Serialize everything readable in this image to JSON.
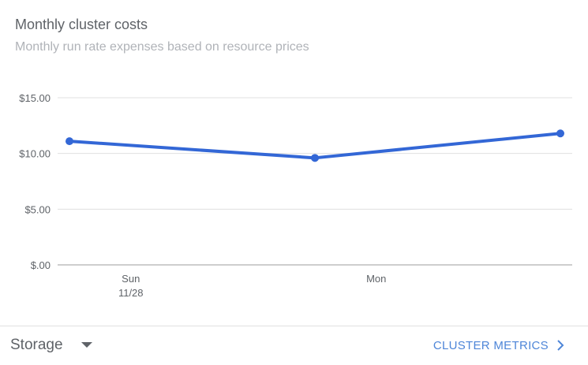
{
  "card": {
    "title": "Monthly cluster costs",
    "subtitle": "Monthly run rate expenses based on resource prices"
  },
  "footer": {
    "dropdown_value": "Storage",
    "dropdown_icon": "caret-down-icon",
    "link_label": "CLUSTER METRICS",
    "link_icon": "chevron-right-icon"
  },
  "colors": {
    "series": "#3367d6",
    "accent_link": "#4e86d8",
    "gridline": "#e0e0e0",
    "axis": "#9e9e9e"
  },
  "chart_data": {
    "type": "line",
    "title": "Monthly cluster costs",
    "subtitle": "Monthly run rate expenses based on resource prices",
    "x_type": "date",
    "x": [
      "2021-11-27T18:00",
      "2021-11-28T18:00",
      "2021-11-29T18:00"
    ],
    "x_ticks": [
      {
        "at": "2021-11-28T00:00",
        "lines": [
          "Sun",
          "11/28"
        ]
      },
      {
        "at": "2021-11-29T00:00",
        "lines": [
          "Mon"
        ]
      }
    ],
    "series": [
      {
        "values": [
          11.1,
          9.6,
          11.8
        ]
      }
    ],
    "y_ticks": [
      0,
      5,
      10,
      15
    ],
    "y_tick_labels": [
      "$.00",
      "$5.00",
      "$10.00",
      "$15.00"
    ],
    "ylim": [
      0,
      15
    ],
    "grid": true,
    "legend": "none"
  }
}
